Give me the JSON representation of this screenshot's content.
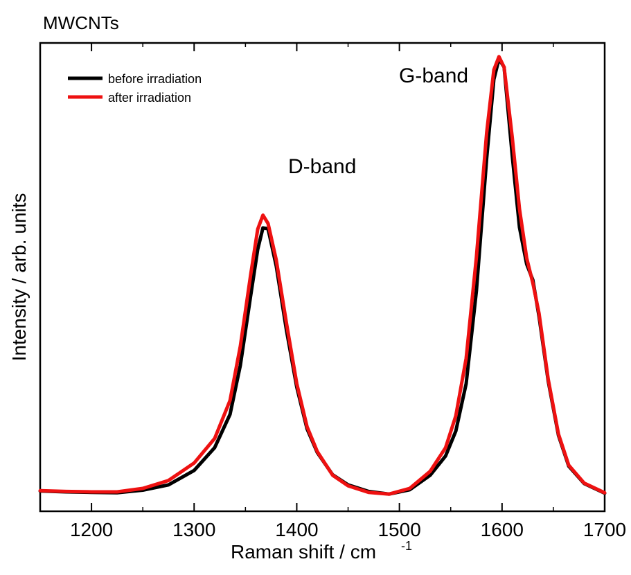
{
  "chart_data": {
    "type": "line",
    "title": "MWCNTs",
    "xlabel": "Raman shift / cm",
    "xlabel_superscript": "-1",
    "ylabel": "Intensity / arb. units",
    "xlim": [
      1150,
      1700
    ],
    "ylim": [
      0,
      1.0
    ],
    "x_ticks": [
      1200,
      1300,
      1400,
      1500,
      1600,
      1700
    ],
    "y_tick_labels_shown": false,
    "grid": false,
    "legend_position": "top-left",
    "annotations": [
      {
        "text": "D-band",
        "x": 1393,
        "y": 0.76
      },
      {
        "text": "G-band",
        "x": 1562,
        "y": 0.99
      }
    ],
    "x": [
      1150,
      1175,
      1200,
      1225,
      1250,
      1275,
      1300,
      1320,
      1335,
      1345,
      1355,
      1362,
      1367,
      1372,
      1380,
      1390,
      1400,
      1410,
      1420,
      1435,
      1450,
      1470,
      1490,
      1510,
      1530,
      1545,
      1555,
      1565,
      1575,
      1585,
      1592,
      1597,
      1602,
      1610,
      1617,
      1624,
      1630,
      1636,
      1645,
      1655,
      1665,
      1680,
      1700
    ],
    "series": [
      {
        "name": "before irradiation",
        "color": "#000000",
        "values": [
          0.013,
          0.011,
          0.01,
          0.009,
          0.015,
          0.027,
          0.06,
          0.112,
          0.188,
          0.3,
          0.458,
          0.565,
          0.614,
          0.612,
          0.527,
          0.38,
          0.25,
          0.155,
          0.101,
          0.05,
          0.027,
          0.012,
          0.006,
          0.016,
          0.049,
          0.093,
          0.15,
          0.258,
          0.47,
          0.772,
          0.953,
          1.0,
          0.981,
          0.778,
          0.615,
          0.531,
          0.495,
          0.412,
          0.264,
          0.14,
          0.07,
          0.03,
          0.008
        ]
      },
      {
        "name": "after irradiation",
        "color": "#ee1111",
        "values": [
          0.014,
          0.012,
          0.011,
          0.011,
          0.019,
          0.037,
          0.077,
          0.133,
          0.22,
          0.344,
          0.506,
          0.611,
          0.643,
          0.624,
          0.541,
          0.396,
          0.258,
          0.16,
          0.103,
          0.049,
          0.025,
          0.01,
          0.006,
          0.019,
          0.058,
          0.112,
          0.185,
          0.316,
          0.547,
          0.831,
          0.975,
          1.005,
          0.981,
          0.82,
          0.657,
          0.545,
          0.488,
          0.419,
          0.268,
          0.143,
          0.072,
          0.031,
          0.009
        ]
      }
    ]
  }
}
